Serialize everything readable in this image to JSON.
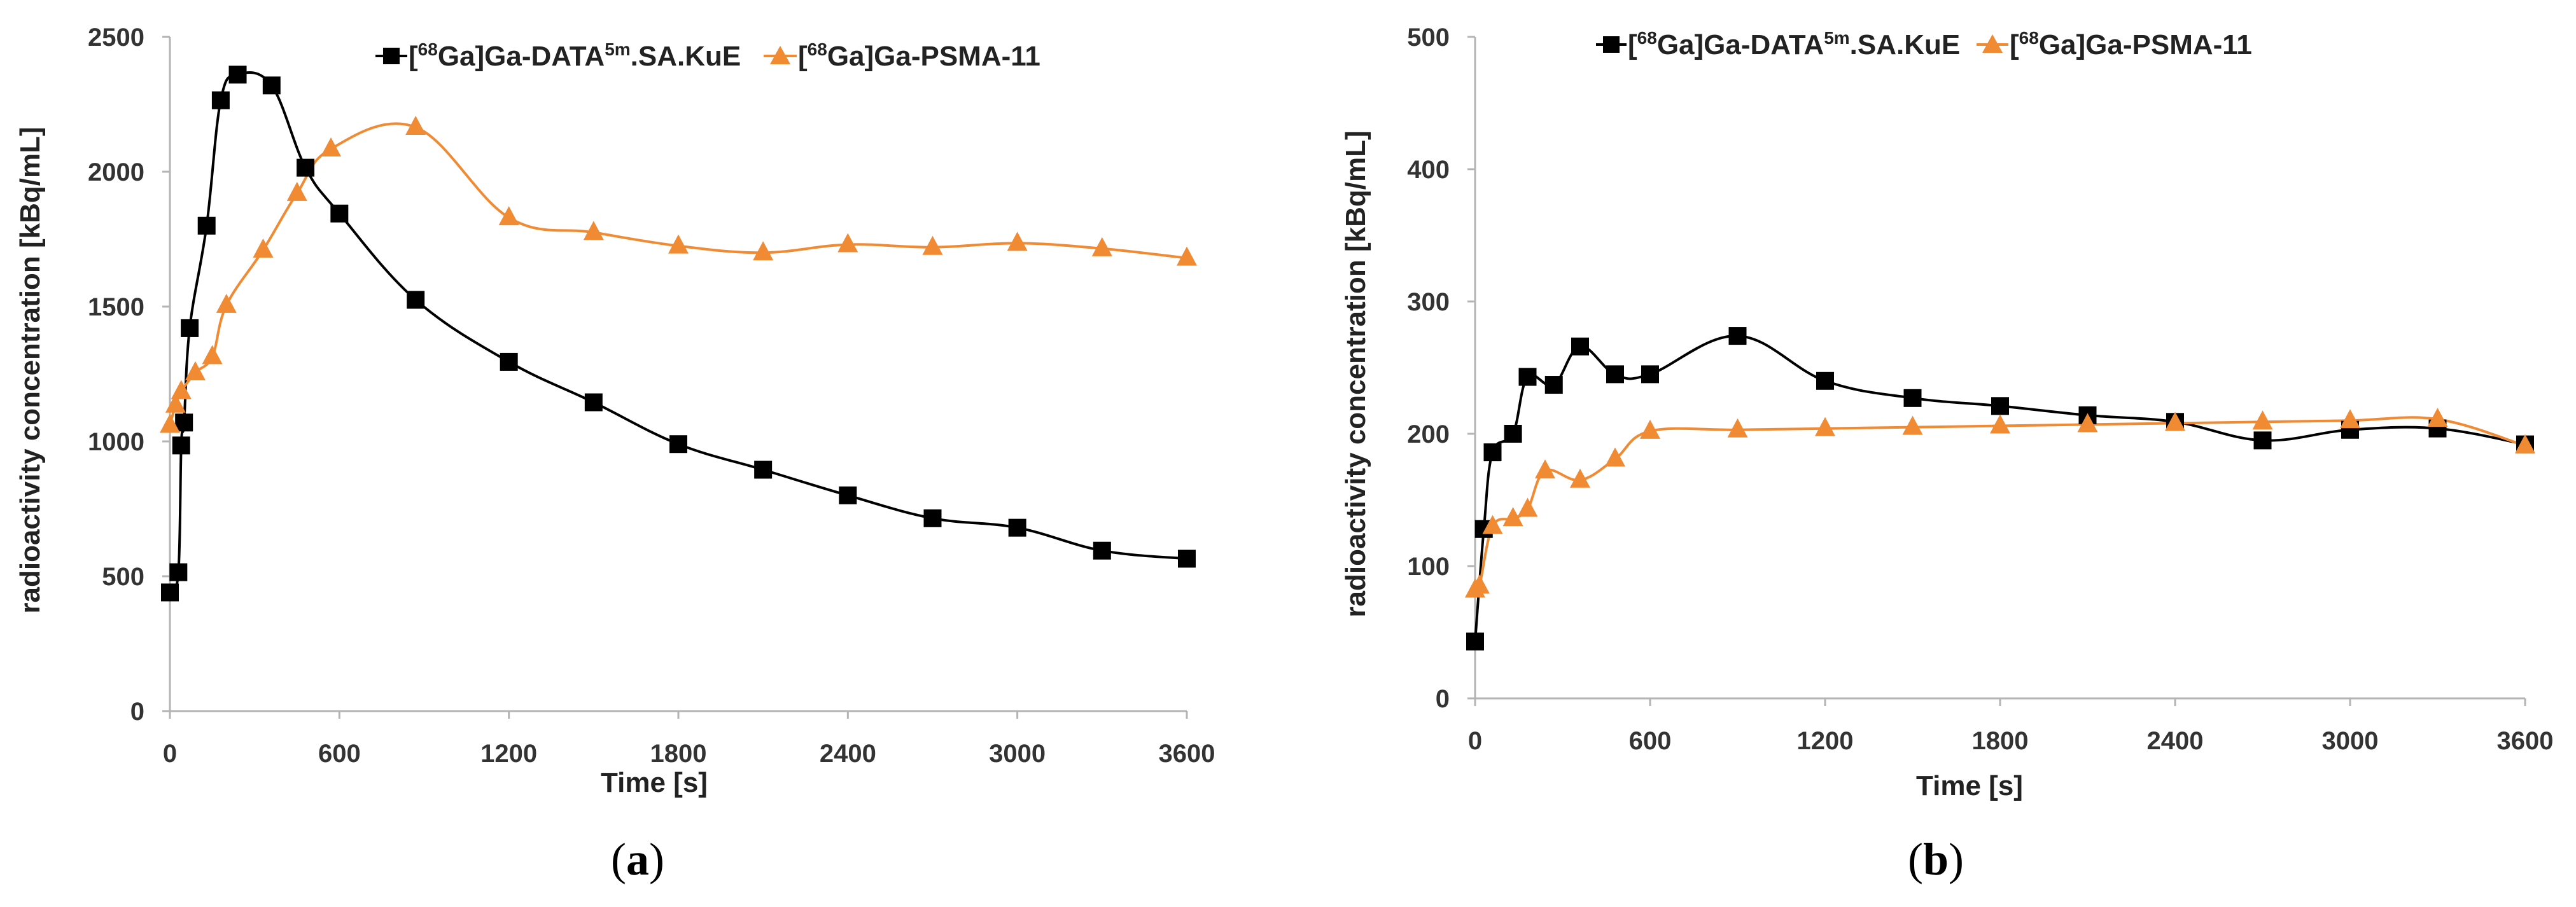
{
  "colors": {
    "series1": "#000000",
    "series2": "#f08a33",
    "axis": "#b4b4b4"
  },
  "chart_data": [
    {
      "type": "line",
      "panel_label": "a",
      "xlabel": "Time [s]",
      "ylabel": "radioactivity concentration [kBq/mL]",
      "xlim": [
        0,
        3600
      ],
      "ylim": [
        0,
        2500
      ],
      "xticks": [
        0,
        600,
        1200,
        1800,
        2400,
        3000,
        3600
      ],
      "yticks": [
        0,
        500,
        1000,
        1500,
        2000,
        2500
      ],
      "legend_position": "top-center",
      "series": [
        {
          "name_prefix": "[",
          "name_sup1": "68",
          "name_mid": "Ga]Ga-DATA",
          "name_sup2": "5m",
          "name_suffix": ".SA.KuE",
          "marker": "square",
          "color_key": "series1",
          "x": [
            0,
            30,
            40,
            50,
            70,
            130,
            180,
            240,
            360,
            480,
            600,
            870,
            1200,
            1500,
            1800,
            2100,
            2400,
            2700,
            3000,
            3300,
            3600
          ],
          "y": [
            440,
            515,
            985,
            1070,
            1420,
            1800,
            2265,
            2360,
            2320,
            2015,
            1845,
            1525,
            1295,
            1145,
            990,
            895,
            800,
            715,
            680,
            595,
            565
          ]
        },
        {
          "name_prefix": "[",
          "name_sup1": "68",
          "name_mid": "Ga]Ga-PSMA-11",
          "name_sup2": "",
          "name_suffix": "",
          "marker": "triangle",
          "color_key": "series2",
          "x": [
            0,
            20,
            40,
            90,
            150,
            200,
            330,
            450,
            570,
            870,
            1200,
            1500,
            1800,
            2100,
            2400,
            2700,
            3000,
            3300,
            3600
          ],
          "y": [
            1060,
            1135,
            1185,
            1255,
            1315,
            1505,
            1710,
            1920,
            2085,
            2165,
            1830,
            1775,
            1725,
            1700,
            1730,
            1720,
            1735,
            1715,
            1680
          ]
        }
      ]
    },
    {
      "type": "line",
      "panel_label": "b",
      "xlabel": "Time [s]",
      "ylabel": "radioactivity concentration [kBq/mL]",
      "xlim": [
        0,
        3600
      ],
      "ylim": [
        0,
        500
      ],
      "xticks": [
        0,
        600,
        1200,
        1800,
        2400,
        3000,
        3600
      ],
      "yticks": [
        0,
        100,
        200,
        300,
        400,
        500
      ],
      "legend_position": "top-center",
      "series": [
        {
          "name_prefix": "[",
          "name_sup1": "68",
          "name_mid": "Ga]Ga-DATA",
          "name_sup2": "5m",
          "name_suffix": ".SA.KuE",
          "marker": "square",
          "color_key": "series1",
          "x": [
            0,
            30,
            60,
            130,
            180,
            270,
            360,
            480,
            600,
            900,
            1200,
            1500,
            1800,
            2100,
            2400,
            2700,
            3000,
            3300,
            3600
          ],
          "y": [
            43,
            128,
            186,
            200,
            243,
            237,
            266,
            245,
            245,
            274,
            240,
            227,
            221,
            214,
            209,
            195,
            203,
            204,
            192
          ]
        },
        {
          "name_prefix": "[",
          "name_sup1": "68",
          "name_mid": "Ga]Ga-PSMA-11",
          "name_sup2": "",
          "name_suffix": "",
          "marker": "triangle",
          "color_key": "series2",
          "x": [
            0,
            15,
            60,
            130,
            180,
            240,
            360,
            480,
            600,
            900,
            1200,
            1500,
            1800,
            2100,
            2400,
            2700,
            3000,
            3300,
            3600
          ],
          "y": [
            82,
            85,
            130,
            136,
            143,
            172,
            165,
            181,
            202,
            203,
            204,
            205,
            206,
            207,
            208,
            209,
            210,
            211,
            191
          ]
        }
      ]
    }
  ]
}
